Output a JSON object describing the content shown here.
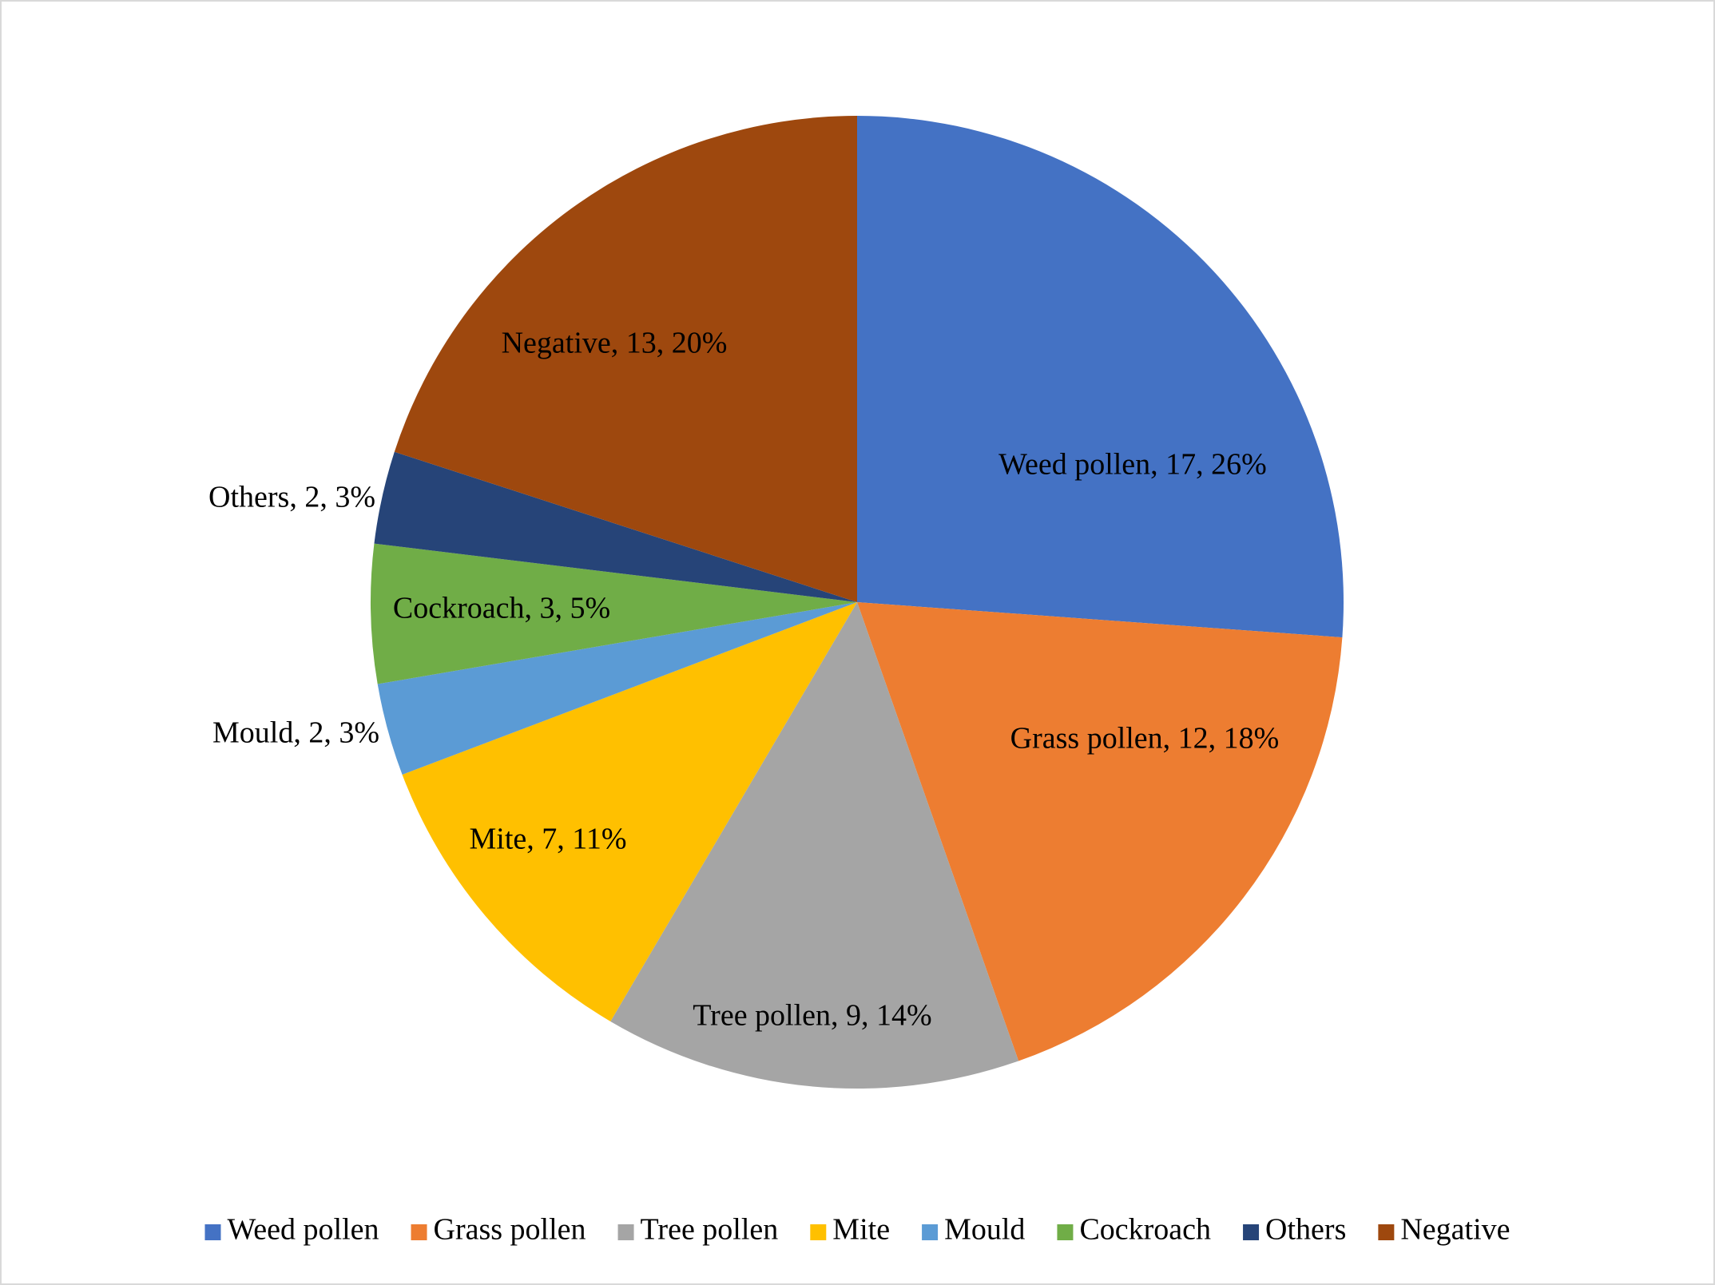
{
  "chart_data": {
    "type": "pie",
    "categories": [
      "Weed pollen",
      "Grass pollen",
      "Tree pollen",
      "Mite",
      "Mould",
      "Cockroach",
      "Others",
      "Negative"
    ],
    "values": [
      17,
      12,
      9,
      7,
      2,
      3,
      2,
      13
    ],
    "value_labels": [
      "Weed pollen, 17, 26%",
      "Grass pollen, 12, 18%",
      "Tree pollen, 9, 14%",
      "Mite, 7, 11%",
      "Mould, 2, 3%",
      "Cockroach, 3, 5%",
      "Others, 2, 3%",
      "Negative, 13, 20%"
    ],
    "colors": [
      "#4472c4",
      "#ed7d31",
      "#a5a5a5",
      "#ffc000",
      "#5b9bd5",
      "#70ad47",
      "#264478",
      "#9e480e"
    ],
    "legend": "bottom"
  }
}
